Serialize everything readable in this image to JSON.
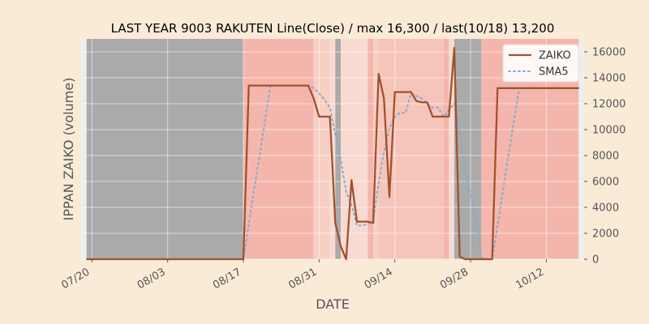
{
  "chart_data": {
    "type": "line",
    "title": "LAST YEAR 9003 RAKUTEN Line(Close) / max 16,300 / last(10/18) 13,200",
    "xlabel": "DATE",
    "ylabel": "IPPAN ZAIKO (volume)",
    "ylim": [
      0,
      17000
    ],
    "xlim": [
      "07/18",
      "10/19"
    ],
    "y_ticks": [
      "0",
      "2000",
      "4000",
      "6000",
      "8000",
      "10000",
      "12000",
      "14000",
      "16000"
    ],
    "x_ticks": [
      "07/20",
      "08/03",
      "08/17",
      "08/31",
      "09/14",
      "09/28",
      "10/12"
    ],
    "y_axis_side": "right",
    "legend_position": "top-right",
    "grid": true,
    "x": [
      "07/19",
      "07/20",
      "07/21",
      "07/22",
      "07/23",
      "07/24",
      "07/25",
      "07/26",
      "07/27",
      "07/28",
      "07/29",
      "07/30",
      "07/31",
      "08/01",
      "08/02",
      "08/03",
      "08/04",
      "08/05",
      "08/06",
      "08/07",
      "08/08",
      "08/09",
      "08/10",
      "08/11",
      "08/12",
      "08/13",
      "08/14",
      "08/15",
      "08/16",
      "08/17",
      "08/18",
      "08/19",
      "08/20",
      "08/21",
      "08/22",
      "08/23",
      "08/24",
      "08/25",
      "08/26",
      "08/27",
      "08/28",
      "08/29",
      "08/30",
      "08/31",
      "09/01",
      "09/02",
      "09/03",
      "09/04",
      "09/05",
      "09/06",
      "09/07",
      "09/08",
      "09/09",
      "09/10",
      "09/11",
      "09/12",
      "09/13",
      "09/14",
      "09/15",
      "09/16",
      "09/17",
      "09/18",
      "09/19",
      "09/20",
      "09/21",
      "09/22",
      "09/23",
      "09/24",
      "09/25",
      "09/26",
      "09/27",
      "09/28",
      "09/29",
      "09/30",
      "10/01",
      "10/02",
      "10/03",
      "10/04",
      "10/05",
      "10/06",
      "10/07",
      "10/08",
      "10/09",
      "10/10",
      "10/11",
      "10/12",
      "10/13",
      "10/14",
      "10/15",
      "10/16",
      "10/17",
      "10/18"
    ],
    "series": [
      {
        "name": "ZAIKO",
        "color": "#A0522D",
        "style": "solid",
        "values": [
          0,
          0,
          0,
          0,
          0,
          0,
          0,
          0,
          0,
          0,
          0,
          0,
          0,
          0,
          0,
          0,
          0,
          0,
          0,
          0,
          0,
          0,
          0,
          0,
          0,
          0,
          0,
          0,
          0,
          0,
          13400,
          13400,
          13400,
          13400,
          13400,
          13400,
          13400,
          13400,
          13400,
          13400,
          13400,
          13400,
          12400,
          11000,
          11000,
          11000,
          2800,
          1000,
          0,
          6100,
          2900,
          2900,
          2900,
          2800,
          14300,
          12400,
          4800,
          12900,
          12900,
          12900,
          12900,
          12200,
          12100,
          12100,
          11000,
          11000,
          11000,
          11000,
          16300,
          200,
          0,
          0,
          0,
          0,
          0,
          0,
          13200,
          13200,
          13200,
          13200,
          13200,
          13200,
          13200,
          13200,
          13200,
          13200,
          13200,
          13200,
          13200,
          13200,
          13200,
          13200
        ]
      },
      {
        "name": "SMA5",
        "color": "#88AACC",
        "style": "dotted",
        "values": [
          0,
          0,
          0,
          0,
          0,
          0,
          0,
          0,
          0,
          0,
          0,
          0,
          0,
          0,
          0,
          0,
          0,
          0,
          0,
          0,
          0,
          0,
          0,
          0,
          0,
          0,
          0,
          0,
          0,
          0,
          2700,
          5400,
          8000,
          10700,
          13400,
          13400,
          13400,
          13400,
          13400,
          13400,
          13400,
          13400,
          13200,
          12800,
          12300,
          11700,
          9600,
          7700,
          5200,
          4200,
          2600,
          2600,
          2700,
          2900,
          5900,
          8300,
          10100,
          11000,
          11300,
          11300,
          12800,
          12600,
          12400,
          12000,
          11700,
          11700,
          11000,
          11500,
          12000,
          9700,
          6900,
          5000,
          3300,
          100,
          0,
          0,
          2600,
          5300,
          8000,
          10600,
          13200,
          13200,
          13200,
          13200,
          13200,
          13200,
          13200,
          13200,
          13200,
          13200,
          13200,
          13200
        ]
      }
    ],
    "background_bands": [
      {
        "from": "07/19",
        "to": "08/17",
        "color": "#AAAAAA"
      },
      {
        "from": "08/17",
        "to": "08/30",
        "color": "#F4B6AC"
      },
      {
        "from": "08/30",
        "to": "09/02",
        "color": "#F8CFC4"
      },
      {
        "from": "09/02",
        "to": "09/03",
        "color": "#F9DAD2"
      },
      {
        "from": "09/03",
        "to": "09/04",
        "color": "#AAAAAA"
      },
      {
        "from": "09/04",
        "to": "09/09",
        "color": "#F9DAD2"
      },
      {
        "from": "09/09",
        "to": "09/10",
        "color": "#F4B6AC"
      },
      {
        "from": "09/10",
        "to": "09/11",
        "color": "#F8CFC4"
      },
      {
        "from": "09/11",
        "to": "09/23",
        "color": "#F6C5BA"
      },
      {
        "from": "09/23",
        "to": "09/24",
        "color": "#F4B6AC"
      },
      {
        "from": "09/24",
        "to": "09/25",
        "color": "#F9DAD2"
      },
      {
        "from": "09/25",
        "to": "09/30",
        "color": "#AAAAAA"
      },
      {
        "from": "09/30",
        "to": "10/18",
        "color": "#F4B6AC"
      }
    ]
  }
}
